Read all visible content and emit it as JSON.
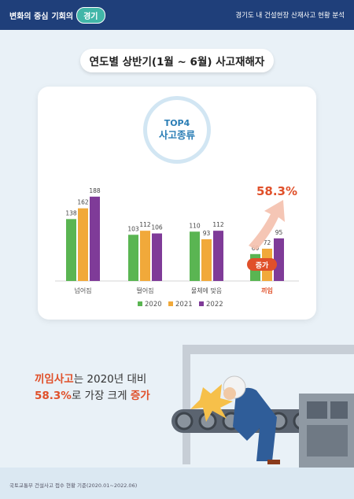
{
  "header": {
    "brand_part1": "변화의 중심",
    "brand_part2": "기회의",
    "brand_badge": "경기",
    "subtitle": "경기도 내 건설현장 산재사고 현황 분석"
  },
  "page_title": "연도별 상반기(1월 ~ 6월) 사고재해자",
  "badge": {
    "line1": "TOP4",
    "line2": "사고종류"
  },
  "highlight": {
    "percent": "58.3%",
    "increase_label": "증가"
  },
  "chart_data": {
    "type": "bar",
    "title": "연도별 상반기(1월 ~ 6월) 사고재해자",
    "categories": [
      "넘어짐",
      "떨어짐",
      "물체에 맞음",
      "끼임"
    ],
    "series": [
      {
        "name": "2020",
        "values": [
          138,
          103,
          110,
          60
        ],
        "color": "#5ab552"
      },
      {
        "name": "2021",
        "values": [
          162,
          112,
          93,
          72
        ],
        "color": "#f1a93a"
      },
      {
        "name": "2022",
        "values": [
          188,
          106,
          112,
          95
        ],
        "color": "#7f3b98"
      }
    ],
    "highlight_category_color": "#e0502a",
    "legend_position": "bottom",
    "grid": false
  },
  "headline": {
    "line1_a": "끼임사고",
    "line1_b": "는 2020년 대비",
    "line2_a": "58.3%",
    "line2_b": "로 가장 크게 ",
    "line2_c": "증가"
  },
  "footer": {
    "source": "국토교통부 건설사고 접수 현황 기준(2020.01~2022.06)"
  },
  "colors": {
    "header_bg": "#1f3f7a",
    "accent": "#e0502a",
    "page_bg": "#e9f1f7"
  }
}
